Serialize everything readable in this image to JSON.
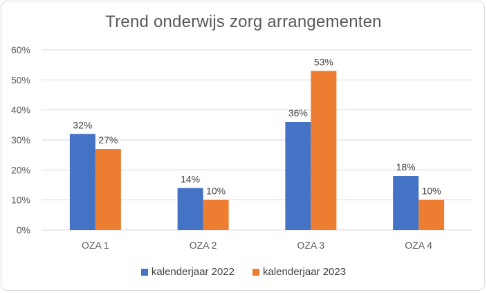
{
  "chart_data": {
    "type": "bar",
    "title": "Trend onderwijs zorg arrangementen",
    "xlabel": "",
    "ylabel": "",
    "categories": [
      "OZA 1",
      "OZA 2",
      "OZA 3",
      "OZA 4"
    ],
    "series": [
      {
        "name": "kalenderjaar 2022",
        "color": "#4472c4",
        "values": [
          32,
          14,
          36,
          18
        ],
        "labels": [
          "32%",
          "14%",
          "36%",
          "18%"
        ]
      },
      {
        "name": "kalenderjaar 2023",
        "color": "#ed7d31",
        "values": [
          27,
          10,
          53,
          10
        ],
        "labels": [
          "27%",
          "10%",
          "53%",
          "10%"
        ]
      }
    ],
    "ylim": [
      0,
      60
    ],
    "yticks": [
      "0%",
      "10%",
      "20%",
      "30%",
      "40%",
      "50%",
      "60%"
    ],
    "grid": true,
    "legend_position": "bottom"
  }
}
